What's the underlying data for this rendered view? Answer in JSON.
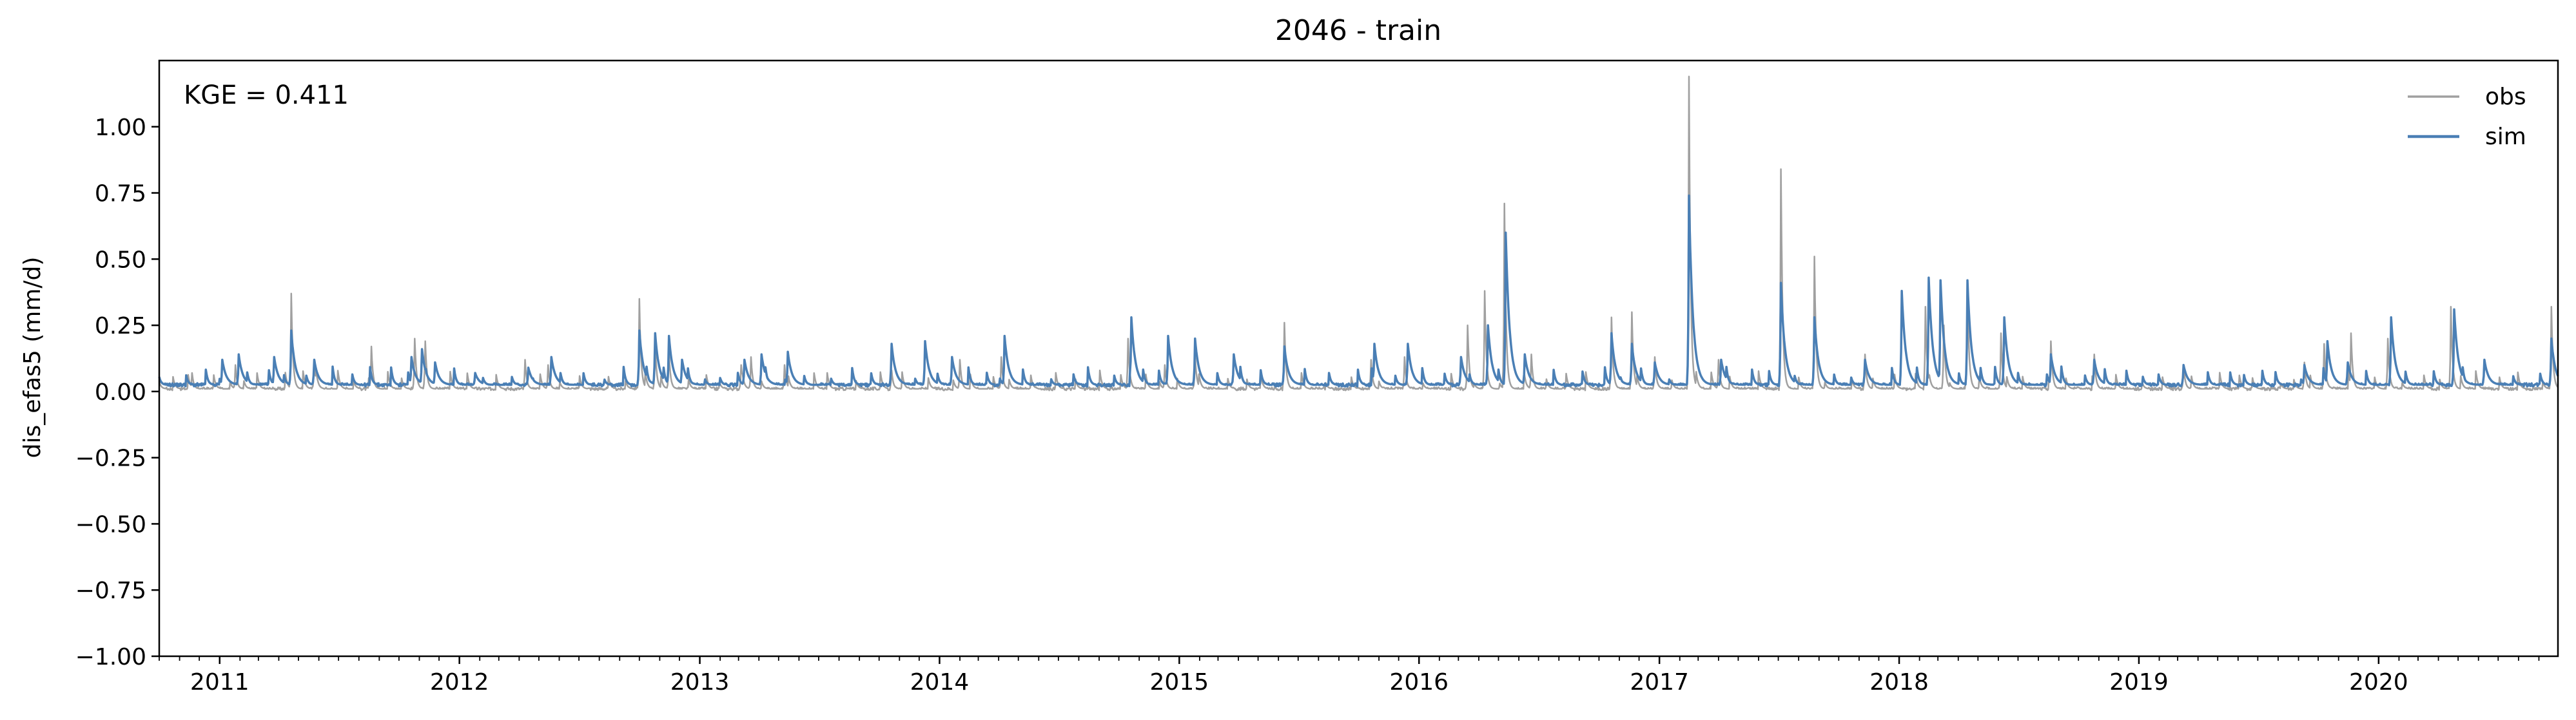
{
  "chart_data": {
    "type": "line",
    "title": "2046 - train",
    "xlabel": "",
    "ylabel": "dis_efas5 (mm/d)",
    "xlim": [
      "2010-10-01",
      "2020-09-30"
    ],
    "ylim": [
      -1.0,
      1.25
    ],
    "xticks": [
      "2011",
      "2012",
      "2013",
      "2014",
      "2015",
      "2016",
      "2017",
      "2018",
      "2019",
      "2020"
    ],
    "yticks": [
      "1.00",
      "0.75",
      "0.50",
      "0.25",
      "0.00",
      "−0.25",
      "−0.50",
      "−0.75",
      "−1.00"
    ],
    "ytick_values": [
      1.0,
      0.75,
      0.5,
      0.25,
      0.0,
      -0.25,
      -0.5,
      -0.75,
      -1.0
    ],
    "grid": false,
    "legend_position": "top-right",
    "annotation": "KGE = 0.411",
    "baseline": {
      "obs": 0.01,
      "sim": 0.025
    },
    "series": [
      {
        "name": "obs",
        "color": "#a0a0a0",
        "peaks": [
          [
            "2010-11-20",
            0.07
          ],
          [
            "2011-01-25",
            0.1
          ],
          [
            "2011-04-20",
            0.37
          ],
          [
            "2011-05-25",
            0.12
          ],
          [
            "2011-08-20",
            0.17
          ],
          [
            "2011-10-25",
            0.2
          ],
          [
            "2011-11-10",
            0.19
          ],
          [
            "2012-04-10",
            0.12
          ],
          [
            "2012-05-15",
            0.1
          ],
          [
            "2012-10-01",
            0.35
          ],
          [
            "2012-10-25",
            0.18
          ],
          [
            "2012-11-15",
            0.15
          ],
          [
            "2013-03-05",
            0.1
          ],
          [
            "2013-03-20",
            0.13
          ],
          [
            "2013-05-10",
            0.1
          ],
          [
            "2013-10-20",
            0.08
          ],
          [
            "2014-02-01",
            0.12
          ],
          [
            "2014-04-05",
            0.13
          ],
          [
            "2014-10-15",
            0.2
          ],
          [
            "2014-12-10",
            0.1
          ],
          [
            "2015-01-25",
            0.14
          ],
          [
            "2015-06-10",
            0.26
          ],
          [
            "2015-10-20",
            0.12
          ],
          [
            "2015-12-10",
            0.13
          ],
          [
            "2016-03-15",
            0.25
          ],
          [
            "2016-04-10",
            0.38
          ],
          [
            "2016-05-10",
            0.71
          ],
          [
            "2016-06-20",
            0.14
          ],
          [
            "2016-10-20",
            0.28
          ],
          [
            "2016-11-20",
            0.3
          ],
          [
            "2016-12-25",
            0.13
          ],
          [
            "2017-02-15",
            1.19
          ],
          [
            "2017-04-01",
            0.12
          ],
          [
            "2017-07-05",
            0.84
          ],
          [
            "2017-08-25",
            0.51
          ],
          [
            "2017-11-10",
            0.14
          ],
          [
            "2018-02-10",
            0.32
          ],
          [
            "2018-03-10",
            0.25
          ],
          [
            "2018-04-15",
            0.38
          ],
          [
            "2018-06-05",
            0.22
          ],
          [
            "2018-08-20",
            0.19
          ],
          [
            "2018-10-25",
            0.14
          ],
          [
            "2019-03-10",
            0.1
          ],
          [
            "2019-09-10",
            0.11
          ],
          [
            "2019-10-10",
            0.18
          ],
          [
            "2019-11-20",
            0.22
          ],
          [
            "2020-01-15",
            0.2
          ],
          [
            "2020-04-20",
            0.32
          ],
          [
            "2020-09-20",
            0.32
          ]
        ]
      },
      {
        "name": "sim",
        "color": "#4a7fb5",
        "peaks": [
          [
            "2011-01-05",
            0.12
          ],
          [
            "2011-01-30",
            0.14
          ],
          [
            "2011-03-25",
            0.13
          ],
          [
            "2011-04-20",
            0.23
          ],
          [
            "2011-05-25",
            0.12
          ],
          [
            "2011-10-20",
            0.13
          ],
          [
            "2011-11-05",
            0.16
          ],
          [
            "2011-11-25",
            0.11
          ],
          [
            "2012-01-25",
            0.07
          ],
          [
            "2012-04-15",
            0.09
          ],
          [
            "2012-05-20",
            0.13
          ],
          [
            "2012-10-01",
            0.23
          ],
          [
            "2012-10-25",
            0.22
          ],
          [
            "2012-11-15",
            0.21
          ],
          [
            "2012-12-05",
            0.12
          ],
          [
            "2013-03-10",
            0.12
          ],
          [
            "2013-04-05",
            0.14
          ],
          [
            "2013-05-15",
            0.15
          ],
          [
            "2013-10-20",
            0.18
          ],
          [
            "2013-12-10",
            0.19
          ],
          [
            "2014-01-20",
            0.13
          ],
          [
            "2014-04-10",
            0.21
          ],
          [
            "2014-10-20",
            0.28
          ],
          [
            "2014-12-15",
            0.21
          ],
          [
            "2015-01-25",
            0.2
          ],
          [
            "2015-03-25",
            0.14
          ],
          [
            "2015-06-10",
            0.17
          ],
          [
            "2015-10-25",
            0.18
          ],
          [
            "2015-12-15",
            0.18
          ],
          [
            "2016-03-05",
            0.13
          ],
          [
            "2016-04-15",
            0.25
          ],
          [
            "2016-05-12",
            0.6
          ],
          [
            "2016-06-10",
            0.14
          ],
          [
            "2016-10-20",
            0.22
          ],
          [
            "2016-11-20",
            0.18
          ],
          [
            "2016-12-25",
            0.11
          ],
          [
            "2017-02-15",
            0.74
          ],
          [
            "2017-04-05",
            0.12
          ],
          [
            "2017-07-05",
            0.41
          ],
          [
            "2017-08-25",
            0.28
          ],
          [
            "2017-11-10",
            0.12
          ],
          [
            "2018-01-05",
            0.38
          ],
          [
            "2018-02-15",
            0.43
          ],
          [
            "2018-03-05",
            0.42
          ],
          [
            "2018-04-15",
            0.42
          ],
          [
            "2018-06-10",
            0.28
          ],
          [
            "2018-08-20",
            0.14
          ],
          [
            "2018-10-25",
            0.12
          ],
          [
            "2019-03-10",
            0.1
          ],
          [
            "2019-09-10",
            0.1
          ],
          [
            "2019-10-15",
            0.19
          ],
          [
            "2019-11-15",
            0.11
          ],
          [
            "2020-01-20",
            0.28
          ],
          [
            "2020-04-25",
            0.31
          ],
          [
            "2020-06-10",
            0.12
          ],
          [
            "2020-09-20",
            0.2
          ]
        ]
      }
    ]
  }
}
